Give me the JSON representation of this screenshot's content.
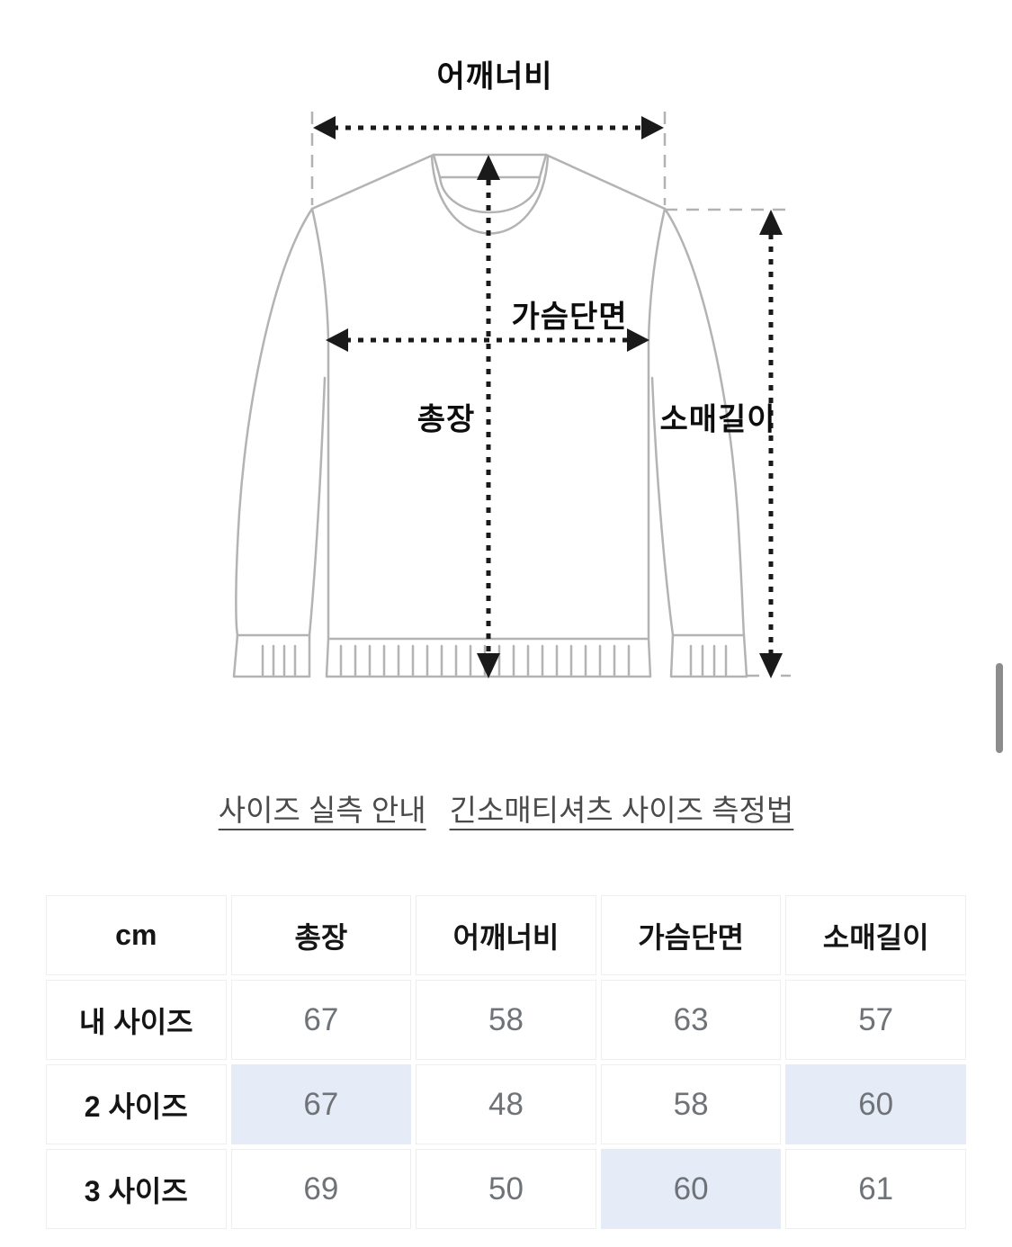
{
  "diagram": {
    "labels": {
      "shoulder_width": "어깨너비",
      "chest_width": "가슴단면",
      "total_length": "총장",
      "sleeve_length": "소매길이"
    }
  },
  "links": [
    {
      "label": "사이즈 실측 안내"
    },
    {
      "label": "긴소매티셔츠 사이즈 측정법"
    }
  ],
  "size_table": {
    "unit_header": "cm",
    "columns": [
      "총장",
      "어깨너비",
      "가슴단면",
      "소매길이"
    ],
    "rows": [
      {
        "label": "내 사이즈",
        "cells": [
          {
            "value": "67",
            "highlight": false
          },
          {
            "value": "58",
            "highlight": false
          },
          {
            "value": "63",
            "highlight": false
          },
          {
            "value": "57",
            "highlight": false
          }
        ]
      },
      {
        "label": "2 사이즈",
        "cells": [
          {
            "value": "67",
            "highlight": true
          },
          {
            "value": "48",
            "highlight": false
          },
          {
            "value": "58",
            "highlight": false
          },
          {
            "value": "60",
            "highlight": true
          }
        ]
      },
      {
        "label": "3 사이즈",
        "cells": [
          {
            "value": "69",
            "highlight": false
          },
          {
            "value": "50",
            "highlight": false
          },
          {
            "value": "60",
            "highlight": true
          },
          {
            "value": "61",
            "highlight": false
          }
        ]
      }
    ]
  },
  "colors": {
    "highlight_cell": "#e6ebf8",
    "value_text": "#6f7377",
    "outline_gray": "#b3b3b3",
    "arrow_black": "#1a1a1a",
    "link_text": "#4a4a4a",
    "scrollbar_thumb": "#8c8c8c"
  }
}
